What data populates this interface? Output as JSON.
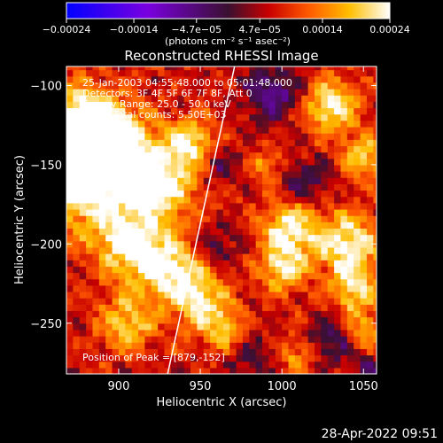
{
  "chart_data": {
    "type": "heatmap",
    "title": "Reconstructed RHESSI Image",
    "xlabel": "Heliocentric X (arcsec)",
    "ylabel": "Heliocentric Y (arcsec)",
    "xlim": [
      868,
      1058
    ],
    "ylim": [
      -282,
      -88
    ],
    "x_ticks": [
      900,
      950,
      1000,
      1050
    ],
    "y_ticks": [
      -100,
      -150,
      -200,
      -250
    ],
    "x_tick_labels": [
      "900",
      "950",
      "1000",
      "1050"
    ],
    "y_tick_labels": [
      "−100",
      "−150",
      "−200",
      "−250"
    ],
    "colorbar": {
      "min": -0.00024,
      "max": 0.00024,
      "ticks": [
        -0.00024,
        -0.00014,
        -4.7e-05,
        4.7e-05,
        0.00014,
        0.00024
      ],
      "tick_labels": [
        "−0.00024",
        "−0.00014",
        "−4.7e−05",
        "4.7e−05",
        "0.00014",
        "0.00024"
      ],
      "units_label": "(photons cm⁻² s⁻¹ asec⁻²)"
    },
    "annotations": [
      "25-Jan-2003 04:55:48.000 to 05:01:48.000",
      "Detectors: 3F 4F 5F 6F 7F 8F, Att 0",
      "Energy Range: 25.0 - 50.0 keV",
      "Clean    Total counts: 5.50E+03"
    ],
    "peak_text": "Position of Peak = [879,-152]",
    "peak": [
      879,
      -152
    ],
    "limb_line": [
      [
        930,
        -282
      ],
      [
        971,
        -88
      ]
    ],
    "grid": false,
    "hot_regions": [
      {
        "x": 880,
        "y": -155,
        "r": 22,
        "v": 1.0
      },
      {
        "x": 878,
        "y": -120,
        "r": 14,
        "v": 0.75
      },
      {
        "x": 895,
        "y": -135,
        "r": 14,
        "v": 0.8
      },
      {
        "x": 925,
        "y": -160,
        "r": 18,
        "v": 0.75
      },
      {
        "x": 945,
        "y": -135,
        "r": 10,
        "v": 0.6
      },
      {
        "x": 905,
        "y": -200,
        "r": 14,
        "v": 0.65
      },
      {
        "x": 930,
        "y": -215,
        "r": 14,
        "v": 0.75
      },
      {
        "x": 905,
        "y": -250,
        "r": 12,
        "v": 0.55
      },
      {
        "x": 950,
        "y": -235,
        "r": 12,
        "v": 0.6
      },
      {
        "x": 965,
        "y": -255,
        "r": 10,
        "v": 0.5
      },
      {
        "x": 1000,
        "y": -215,
        "r": 10,
        "v": 0.6
      },
      {
        "x": 1005,
        "y": -190,
        "r": 12,
        "v": 0.7
      },
      {
        "x": 1040,
        "y": -200,
        "r": 14,
        "v": 0.75
      },
      {
        "x": 1045,
        "y": -230,
        "r": 10,
        "v": 0.6
      },
      {
        "x": 1050,
        "y": -255,
        "r": 8,
        "v": 0.45
      },
      {
        "x": 1030,
        "y": -112,
        "r": 12,
        "v": 0.7
      },
      {
        "x": 1050,
        "y": -145,
        "r": 10,
        "v": 0.55
      },
      {
        "x": 1010,
        "y": -270,
        "r": 8,
        "v": 0.4
      },
      {
        "x": 990,
        "y": -150,
        "r": 7,
        "v": 0.4
      }
    ],
    "cold_regions": [
      {
        "x": 995,
        "y": -105,
        "r": 12,
        "v": -0.55
      },
      {
        "x": 1015,
        "y": -160,
        "r": 10,
        "v": -0.4
      },
      {
        "x": 960,
        "y": -150,
        "r": 10,
        "v": -0.35
      },
      {
        "x": 960,
        "y": -200,
        "r": 10,
        "v": -0.3
      },
      {
        "x": 1030,
        "y": -260,
        "r": 10,
        "v": -0.45
      },
      {
        "x": 980,
        "y": -270,
        "r": 10,
        "v": -0.35
      },
      {
        "x": 1055,
        "y": -280,
        "r": 8,
        "v": -0.35
      }
    ]
  },
  "footer": {
    "timestamp": "28-Apr-2022 09:51"
  }
}
